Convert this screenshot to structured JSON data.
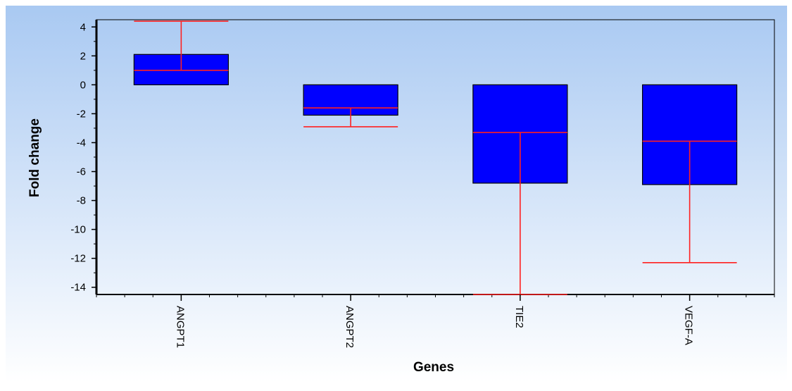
{
  "chart_data": {
    "type": "bar",
    "ylabel": "Fold change",
    "xlabel": "Genes",
    "ylim": [
      -14.5,
      4.5
    ],
    "yticks": [
      4,
      2,
      0,
      -2,
      -4,
      -6,
      -8,
      -10,
      -12,
      -14
    ],
    "grid": false,
    "legend": "none",
    "categories": [
      "ANGPT1",
      "ANGPT2",
      "TIE2",
      "VEGF-A"
    ],
    "values": [
      2.1,
      -2.1,
      -6.8,
      -6.9
    ],
    "median": [
      1.0,
      -1.6,
      -3.3,
      -3.9
    ],
    "whisker": [
      4.4,
      -2.9,
      -14.5,
      -12.3
    ],
    "colors": {
      "bar_fill": "#0000ff",
      "bar_stroke": "#000000",
      "median_and_whisker": "#ff2020",
      "background_top": "#a9c9f2",
      "background_bottom": "#ffffff"
    }
  }
}
